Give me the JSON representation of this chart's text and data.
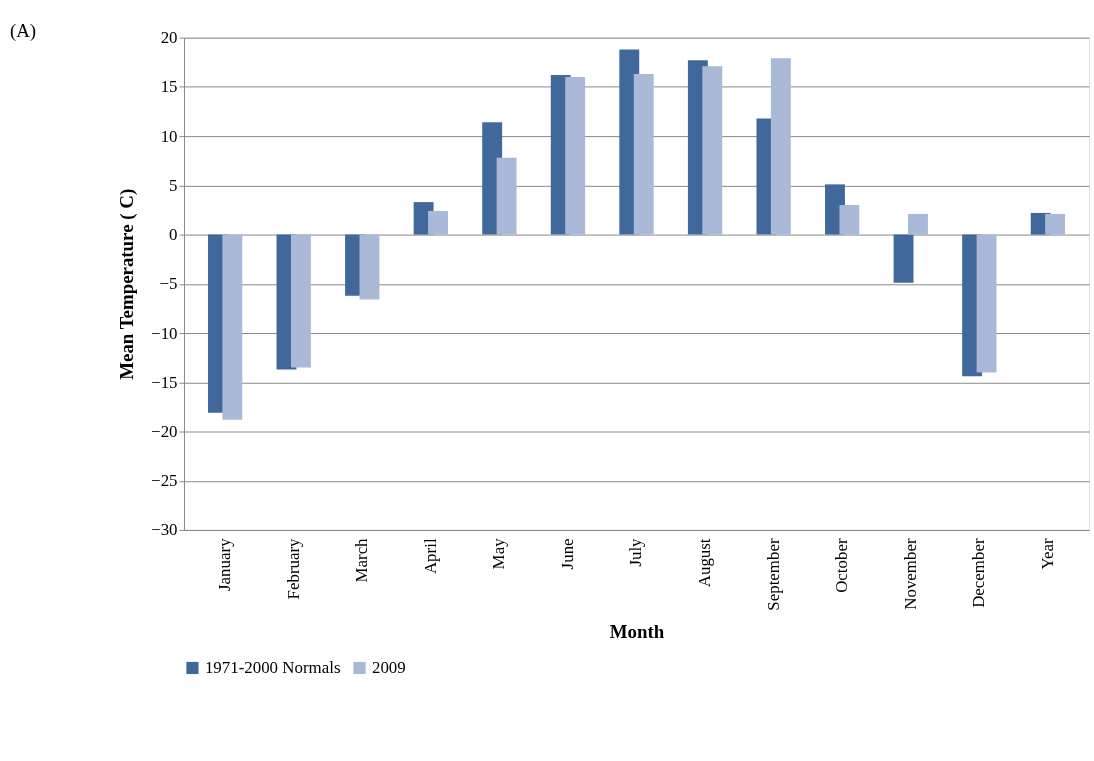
{
  "chart_data": {
    "type": "bar",
    "xlabel": "Month",
    "ylabel": "Mean Temperature ( C)",
    "annotations": [
      "(A)"
    ],
    "categories": [
      "January",
      "February",
      "March",
      "April",
      "May",
      "June",
      "July",
      "August",
      "September",
      "October",
      "November",
      "December",
      "Year"
    ],
    "series": [
      {
        "name": "1971-2000 Normals",
        "color": "#41689a",
        "values": [
          -18.1,
          -13.7,
          -6.2,
          3.3,
          11.4,
          16.2,
          18.8,
          17.7,
          11.8,
          5.1,
          -4.9,
          -14.4,
          2.2
        ]
      },
      {
        "name": "2009",
        "color": "#a9b9d7",
        "values": [
          -18.8,
          -13.5,
          -6.6,
          2.4,
          7.8,
          16.0,
          16.3,
          17.1,
          17.9,
          3.0,
          2.1,
          -14.0,
          2.1
        ]
      }
    ],
    "ylim": [
      -30,
      20
    ],
    "yticks": [
      -30,
      -25,
      -20,
      -15,
      -10,
      -5,
      0,
      5,
      10,
      15,
      20
    ],
    "grid": "y",
    "legend": "bottom"
  }
}
